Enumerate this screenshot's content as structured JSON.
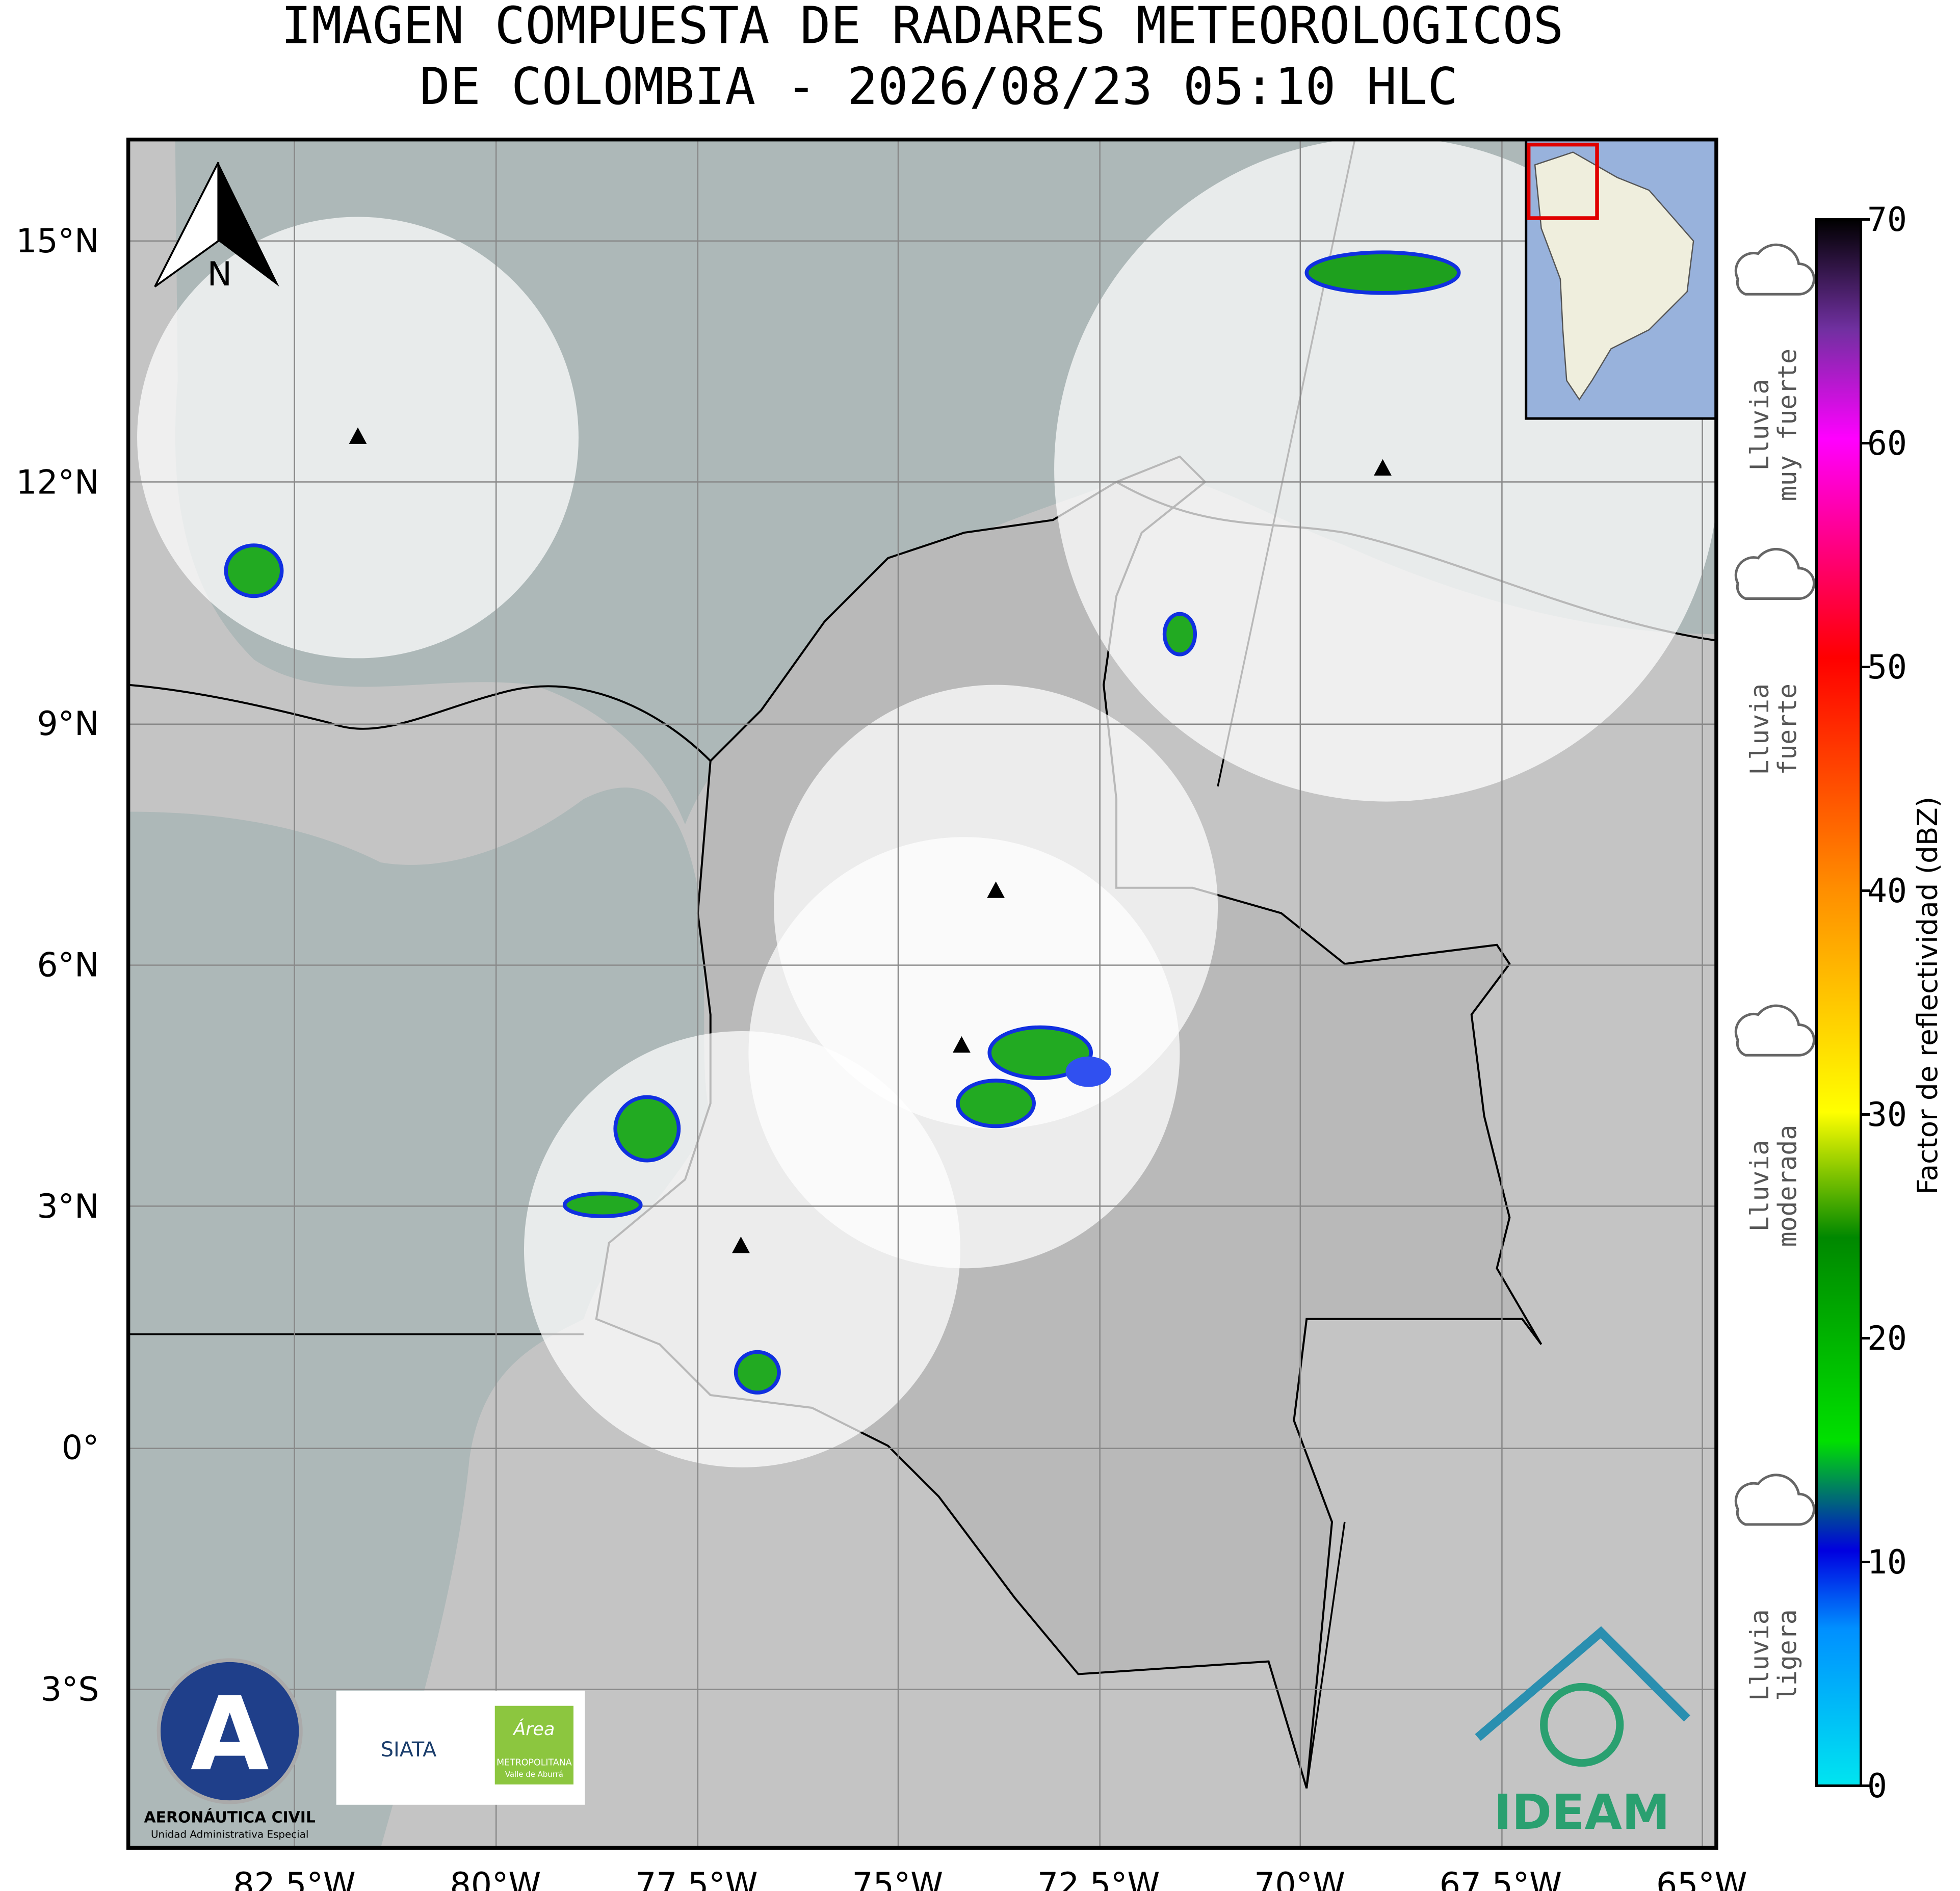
{
  "title": [
    "IMAGEN COMPUESTA DE RADARES METEOROLOGICOS",
    "DE COLOMBIA - 2026/08/23 05:10 HLC"
  ],
  "longitude_labels": [
    "82.5°W",
    "80°W",
    "77.5°W",
    "75°W",
    "72.5°W",
    "70°W",
    "67.5°W",
    "65°W"
  ],
  "latitude_labels": [
    "15°N",
    "12°N",
    "9°N",
    "6°N",
    "3°N",
    "0°",
    "3°S"
  ],
  "north_arrow": "N",
  "colorbar": {
    "range": [
      0,
      70
    ],
    "ticks": [
      0,
      10,
      20,
      30,
      40,
      50,
      60,
      70
    ],
    "label": "Factor de reflectividad (dBZ)"
  },
  "rain_levels": [
    [
      "Lluvia",
      "muy fuerte"
    ],
    [
      "Lluvia",
      "fuerte"
    ],
    [
      "Lluvia",
      "moderada"
    ],
    [
      "Lluvia",
      "ligera"
    ]
  ],
  "logos": {
    "aerocivil": [
      "AERONÁUTICA CIVIL",
      "Unidad Administrativa Especial"
    ],
    "siata": "SIATA",
    "area": [
      "Área",
      "METROPOLITANA",
      "Valle de Aburrá"
    ],
    "ideam": "IDEAM"
  }
}
